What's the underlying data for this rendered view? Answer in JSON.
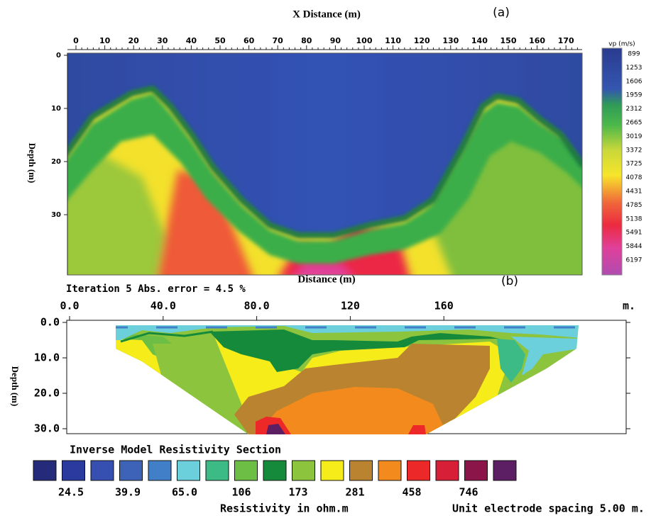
{
  "panel_a": {
    "title": "X Distance (m)",
    "label": "(a)",
    "x_ticks": [
      "0",
      "10",
      "20",
      "30",
      "40",
      "50",
      "60",
      "70",
      "80",
      "90",
      "100",
      "110",
      "120",
      "130",
      "140",
      "150",
      "160",
      "170"
    ],
    "y_label": "Depth (m)",
    "y_ticks": [
      "0",
      "10",
      "20",
      "30"
    ],
    "colorbar_unit": "vp (m/s)",
    "colorbar_labels": [
      "899",
      "1253",
      "1606",
      "1959",
      "2312",
      "2665",
      "3019",
      "3372",
      "3725",
      "4078",
      "4431",
      "4785",
      "5138",
      "5491",
      "5844",
      "6197"
    ]
  },
  "panel_b": {
    "title": "Distance (m)",
    "label": "(b)",
    "iteration": "Iteration 5 Abs. error = 4.5 %",
    "x_ticks": [
      "0.0",
      "40.0",
      "80.0",
      "120",
      "160"
    ],
    "x_unit": "m.",
    "y_label": "Depth (m)",
    "y_ticks": [
      "0.0",
      "10.0",
      "20.0",
      "30.0"
    ],
    "section_title": "Inverse Model Resistivity Section",
    "swatch_colors": [
      "#262a7a",
      "#2b3a9e",
      "#3550b0",
      "#3d63b8",
      "#4180c8",
      "#6ccfdc",
      "#3dbb87",
      "#6cbe45",
      "#168a3b",
      "#8cc43e",
      "#f5ec1a",
      "#b9832f",
      "#f28a1e",
      "#ec2828",
      "#d71f38",
      "#8b1548",
      "#5c1f63"
    ],
    "legend_labels": [
      "24.5",
      "39.9",
      "65.0",
      "106",
      "173",
      "281",
      "458",
      "746"
    ],
    "legend_caption": "Resistivity in ohm.m",
    "spacing_note": "Unit electrode spacing 5.00 m."
  }
}
